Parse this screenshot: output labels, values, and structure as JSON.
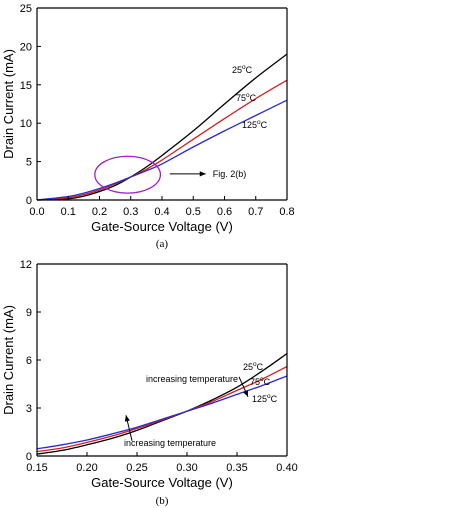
{
  "chart_data": [
    {
      "id": "a",
      "type": "line",
      "caption": "(a)",
      "xlabel": "Gate-Source Voltage (V)",
      "ylabel": "Drain Current (mA)",
      "xlim": [
        0.0,
        0.8
      ],
      "ylim": [
        0,
        25
      ],
      "xticks": [
        "0.0",
        "0.1",
        "0.2",
        "0.3",
        "0.4",
        "0.5",
        "0.6",
        "0.7",
        "0.8"
      ],
      "yticks": [
        "0",
        "5",
        "10",
        "15",
        "20",
        "25"
      ],
      "grid": false,
      "series": [
        {
          "name": "25°C",
          "color": "#000000",
          "x": [
            0.0,
            0.1,
            0.15,
            0.2,
            0.25,
            0.3,
            0.35,
            0.4,
            0.5,
            0.6,
            0.7,
            0.8
          ],
          "y": [
            0,
            0.15,
            0.5,
            1.1,
            1.9,
            3.0,
            4.3,
            5.8,
            9.0,
            12.5,
            15.9,
            19.0
          ]
        },
        {
          "name": "75°C",
          "color": "#d42020",
          "x": [
            0.0,
            0.1,
            0.15,
            0.2,
            0.25,
            0.3,
            0.35,
            0.4,
            0.5,
            0.6,
            0.7,
            0.8
          ],
          "y": [
            0,
            0.3,
            0.7,
            1.3,
            2.1,
            3.0,
            4.0,
            5.2,
            7.9,
            10.6,
            13.2,
            15.6
          ]
        },
        {
          "name": "125°C",
          "color": "#2a2ad4",
          "x": [
            0.0,
            0.1,
            0.15,
            0.2,
            0.25,
            0.3,
            0.35,
            0.4,
            0.5,
            0.6,
            0.7,
            0.8
          ],
          "y": [
            0,
            0.45,
            0.9,
            1.5,
            2.2,
            3.0,
            3.8,
            4.7,
            6.9,
            9.0,
            11.0,
            13.0
          ]
        }
      ],
      "annotations": {
        "ellipse_color": "#a020c8",
        "ellipse_center": [
          0.29,
          3.3
        ],
        "ellipse_radius": [
          0.105,
          2.4
        ],
        "arrow_from": [
          0.425,
          3.4
        ],
        "arrow_to": [
          0.54,
          3.4
        ],
        "arrow_text": "Fig. 2(b)"
      }
    },
    {
      "id": "b",
      "type": "line",
      "caption": "(b)",
      "xlabel": "Gate-Source Voltage (V)",
      "ylabel": "Drain Current (mA)",
      "xlim": [
        0.15,
        0.4
      ],
      "ylim": [
        0,
        12
      ],
      "xticks": [
        "0.15",
        "0.20",
        "0.25",
        "0.30",
        "0.35",
        "0.40"
      ],
      "yticks": [
        "0",
        "3",
        "6",
        "9",
        "12"
      ],
      "grid": false,
      "series": [
        {
          "name": "25°C",
          "color": "#000000",
          "x": [
            0.15,
            0.175,
            0.2,
            0.225,
            0.25,
            0.275,
            0.3,
            0.325,
            0.35,
            0.375,
            0.4
          ],
          "y": [
            0.12,
            0.35,
            0.7,
            1.1,
            1.6,
            2.2,
            2.8,
            3.5,
            4.3,
            5.3,
            6.4
          ]
        },
        {
          "name": "75°C",
          "color": "#d42020",
          "x": [
            0.15,
            0.175,
            0.2,
            0.225,
            0.25,
            0.275,
            0.3,
            0.325,
            0.35,
            0.375,
            0.4
          ],
          "y": [
            0.28,
            0.5,
            0.85,
            1.25,
            1.72,
            2.25,
            2.8,
            3.4,
            4.1,
            4.8,
            5.6
          ]
        },
        {
          "name": "125°C",
          "color": "#2a2ad4",
          "x": [
            0.15,
            0.175,
            0.2,
            0.225,
            0.25,
            0.275,
            0.3,
            0.325,
            0.35,
            0.375,
            0.4
          ],
          "y": [
            0.45,
            0.7,
            1.0,
            1.38,
            1.8,
            2.3,
            2.8,
            3.3,
            3.85,
            4.4,
            5.0
          ]
        }
      ],
      "annotations": {
        "upper_text": "increasing temperature",
        "lower_text": "increasing temperature",
        "upper_arrow_from": [
          0.352,
          4.95
        ],
        "upper_arrow_to": [
          0.361,
          3.7
        ],
        "lower_arrow_from": [
          0.245,
          0.95
        ],
        "lower_arrow_to": [
          0.239,
          2.55
        ]
      }
    }
  ]
}
